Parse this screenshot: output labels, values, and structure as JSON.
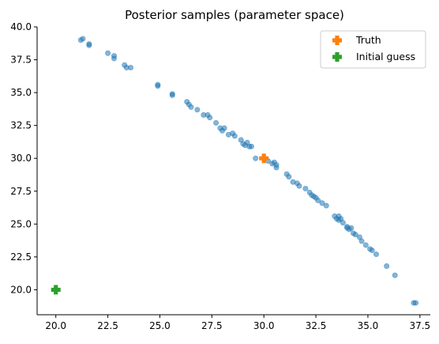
{
  "chart_data": {
    "type": "scatter",
    "title": "Posterior samples (parameter space)",
    "xlabel": "",
    "ylabel": "",
    "xlim": [
      19.1,
      38.0
    ],
    "ylim": [
      18.1,
      40.0
    ],
    "xticks": [
      20.0,
      22.5,
      25.0,
      27.5,
      30.0,
      32.5,
      35.0,
      37.5
    ],
    "yticks": [
      20.0,
      22.5,
      25.0,
      27.5,
      30.0,
      32.5,
      35.0,
      37.5,
      40.0
    ],
    "tick_labels_x": [
      "20.0",
      "22.5",
      "25.0",
      "27.5",
      "30.0",
      "32.5",
      "35.0",
      "37.5"
    ],
    "tick_labels_y": [
      "20.0",
      "22.5",
      "25.0",
      "27.5",
      "30.0",
      "32.5",
      "35.0",
      "37.5",
      "40.0"
    ],
    "grid": false,
    "legend_position": "top-right",
    "colors": {
      "samples": "#1f77b4",
      "truth": "#ff7f0e",
      "initial": "#2ca02c"
    },
    "series": [
      {
        "values": [
          [
            21.2,
            39.0
          ],
          [
            21.3,
            39.1
          ],
          [
            21.6,
            38.6
          ],
          [
            21.6,
            38.7
          ],
          [
            22.5,
            38.0
          ],
          [
            22.8,
            37.8
          ],
          [
            22.8,
            37.6
          ],
          [
            23.3,
            37.1
          ],
          [
            23.4,
            36.9
          ],
          [
            23.6,
            36.9
          ],
          [
            24.9,
            35.6
          ],
          [
            24.9,
            35.5
          ],
          [
            25.6,
            34.9
          ],
          [
            25.6,
            34.8
          ],
          [
            26.3,
            34.3
          ],
          [
            26.4,
            34.1
          ],
          [
            26.5,
            33.9
          ],
          [
            26.8,
            33.7
          ],
          [
            27.1,
            33.3
          ],
          [
            27.3,
            33.3
          ],
          [
            27.4,
            33.1
          ],
          [
            27.7,
            32.7
          ],
          [
            27.9,
            32.3
          ],
          [
            28.0,
            32.1
          ],
          [
            28.1,
            32.3
          ],
          [
            28.3,
            31.8
          ],
          [
            28.5,
            31.9
          ],
          [
            28.6,
            31.7
          ],
          [
            28.9,
            31.4
          ],
          [
            29.0,
            31.1
          ],
          [
            29.1,
            31.0
          ],
          [
            29.2,
            31.2
          ],
          [
            29.3,
            30.9
          ],
          [
            29.4,
            30.9
          ],
          [
            29.6,
            30.0
          ],
          [
            30.2,
            29.8
          ],
          [
            30.4,
            29.6
          ],
          [
            30.5,
            29.7
          ],
          [
            30.6,
            29.5
          ],
          [
            30.6,
            29.3
          ],
          [
            31.1,
            28.8
          ],
          [
            31.2,
            28.6
          ],
          [
            31.4,
            28.2
          ],
          [
            31.6,
            28.1
          ],
          [
            31.7,
            27.9
          ],
          [
            32.0,
            27.7
          ],
          [
            32.2,
            27.4
          ],
          [
            32.3,
            27.2
          ],
          [
            32.4,
            27.1
          ],
          [
            32.5,
            27.0
          ],
          [
            32.6,
            26.8
          ],
          [
            32.8,
            26.6
          ],
          [
            33.0,
            26.4
          ],
          [
            33.4,
            25.6
          ],
          [
            33.5,
            25.4
          ],
          [
            33.6,
            25.6
          ],
          [
            33.6,
            25.3
          ],
          [
            33.7,
            25.4
          ],
          [
            33.8,
            25.1
          ],
          [
            34.0,
            24.8
          ],
          [
            34.1,
            24.6
          ],
          [
            34.0,
            24.7
          ],
          [
            34.2,
            24.7
          ],
          [
            34.3,
            24.3
          ],
          [
            34.4,
            24.2
          ],
          [
            34.6,
            24.0
          ],
          [
            34.7,
            23.7
          ],
          [
            34.9,
            23.4
          ],
          [
            35.1,
            23.1
          ],
          [
            35.2,
            23.0
          ],
          [
            35.4,
            22.7
          ],
          [
            35.9,
            21.8
          ],
          [
            36.3,
            21.1
          ],
          [
            37.2,
            19.0
          ],
          [
            37.3,
            19.0
          ]
        ]
      },
      {
        "name": "Truth",
        "values": [
          [
            30.0,
            30.0
          ]
        ]
      },
      {
        "name": "Initial guess",
        "values": [
          [
            20.0,
            20.0
          ]
        ]
      }
    ]
  }
}
